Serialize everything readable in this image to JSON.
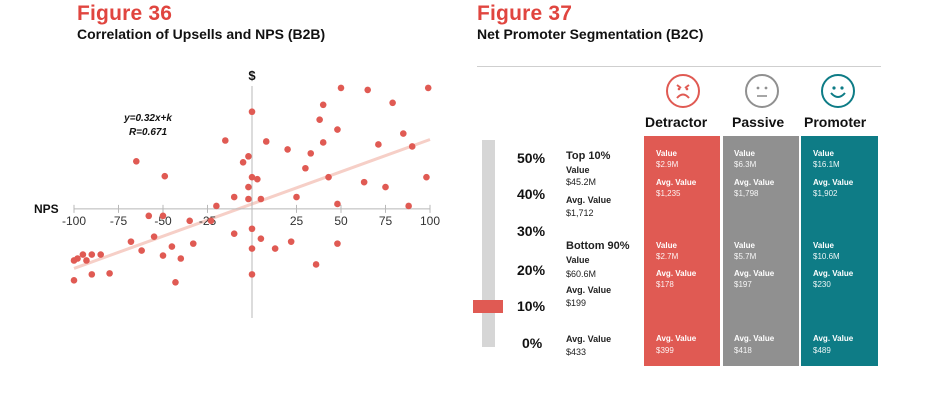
{
  "figure36": {
    "number": "Figure 36",
    "subtitle": "Correlation of Upsells and NPS (B2B)"
  },
  "figure37": {
    "number": "Figure 37",
    "subtitle": "Net Promoter Segmentation (B2C)"
  },
  "colors": {
    "accent_red": "#e0453f",
    "point_red": "#e05a53",
    "trend_line": "#f6cfc7",
    "passive_gray": "#909090",
    "promoter_teal": "#0e7c86"
  },
  "chart_data": [
    {
      "type": "scatter",
      "title": "Correlation of Upsells and NPS (B2B)",
      "xlabel": "NPS",
      "ylabel": "$",
      "xlim": [
        -100,
        100
      ],
      "xticks": [
        -100,
        -75,
        -50,
        -25,
        0,
        25,
        50,
        75,
        100
      ],
      "xtick_labels": [
        "-100",
        "-75",
        "-50",
        "-25",
        "",
        "25",
        "50",
        "75",
        "100"
      ],
      "ylim": [
        -1.1,
        1.3
      ],
      "annotations": [
        "y=0.32x+k",
        "R=0.671"
      ],
      "trendline": {
        "slope": 0.32,
        "x": [
          -100,
          100
        ],
        "y": [
          -0.6,
          0.7
        ]
      },
      "points": [
        {
          "x": 50,
          "y": 1.22
        },
        {
          "x": 65,
          "y": 1.2
        },
        {
          "x": 99,
          "y": 1.22
        },
        {
          "x": 40,
          "y": 1.05
        },
        {
          "x": 79,
          "y": 1.07
        },
        {
          "x": 38,
          "y": 0.9
        },
        {
          "x": 0,
          "y": 0.98
        },
        {
          "x": 48,
          "y": 0.8
        },
        {
          "x": 85,
          "y": 0.76
        },
        {
          "x": -15,
          "y": 0.69
        },
        {
          "x": 8,
          "y": 0.68
        },
        {
          "x": 40,
          "y": 0.67
        },
        {
          "x": 71,
          "y": 0.65
        },
        {
          "x": 20,
          "y": 0.6
        },
        {
          "x": 33,
          "y": 0.56
        },
        {
          "x": 90,
          "y": 0.63
        },
        {
          "x": -2,
          "y": 0.53
        },
        {
          "x": -65,
          "y": 0.48
        },
        {
          "x": -5,
          "y": 0.47
        },
        {
          "x": 30,
          "y": 0.41
        },
        {
          "x": -49,
          "y": 0.33
        },
        {
          "x": 0,
          "y": 0.32
        },
        {
          "x": 3,
          "y": 0.3
        },
        {
          "x": 43,
          "y": 0.32
        },
        {
          "x": 63,
          "y": 0.27
        },
        {
          "x": 98,
          "y": 0.32
        },
        {
          "x": -2,
          "y": 0.22
        },
        {
          "x": 75,
          "y": 0.22
        },
        {
          "x": -10,
          "y": 0.12
        },
        {
          "x": -2,
          "y": 0.1
        },
        {
          "x": 5,
          "y": 0.1
        },
        {
          "x": 25,
          "y": 0.12
        },
        {
          "x": -20,
          "y": 0.03
        },
        {
          "x": 48,
          "y": 0.05
        },
        {
          "x": 88,
          "y": 0.03
        },
        {
          "x": -58,
          "y": -0.07
        },
        {
          "x": -50,
          "y": -0.07
        },
        {
          "x": -35,
          "y": -0.12
        },
        {
          "x": -23,
          "y": -0.12
        },
        {
          "x": 0,
          "y": -0.2
        },
        {
          "x": -10,
          "y": -0.25
        },
        {
          "x": -55,
          "y": -0.28
        },
        {
          "x": -68,
          "y": -0.33
        },
        {
          "x": 5,
          "y": -0.3
        },
        {
          "x": 22,
          "y": -0.33
        },
        {
          "x": -45,
          "y": -0.38
        },
        {
          "x": -33,
          "y": -0.35
        },
        {
          "x": 48,
          "y": -0.35
        },
        {
          "x": 0,
          "y": -0.4
        },
        {
          "x": -62,
          "y": -0.42
        },
        {
          "x": 13,
          "y": -0.4
        },
        {
          "x": -95,
          "y": -0.46
        },
        {
          "x": -90,
          "y": -0.46
        },
        {
          "x": -85,
          "y": -0.46
        },
        {
          "x": -98,
          "y": -0.5
        },
        {
          "x": -50,
          "y": -0.47
        },
        {
          "x": -40,
          "y": -0.5
        },
        {
          "x": -100,
          "y": -0.52
        },
        {
          "x": -93,
          "y": -0.52
        },
        {
          "x": -80,
          "y": -0.65
        },
        {
          "x": 36,
          "y": -0.56
        },
        {
          "x": -90,
          "y": -0.66
        },
        {
          "x": -100,
          "y": -0.72
        },
        {
          "x": -43,
          "y": -0.74
        },
        {
          "x": 0,
          "y": -0.66
        }
      ]
    },
    {
      "type": "table",
      "title": "Net Promoter Segmentation (B2C)",
      "columns": [
        "Detractor",
        "Passive",
        "Promoter"
      ],
      "scale_labels": [
        "50%",
        "40%",
        "30%",
        "20%",
        "10%",
        "0%"
      ],
      "highlighted_scale_label": "10%",
      "rows": [
        {
          "name": "Top 10%",
          "overall": {
            "value_label": "Value",
            "value": "$45.2M",
            "avg_label": "Avg. Value",
            "avg_value": "$1,712"
          },
          "cells": [
            {
              "value_label": "Value",
              "value": "$2.9M",
              "avg_label": "Avg. Value",
              "avg_value": "$1,235"
            },
            {
              "value_label": "Value",
              "value": "$6.3M",
              "avg_label": "Avg. Value",
              "avg_value": "$1,798"
            },
            {
              "value_label": "Value",
              "value": "$16.1M",
              "avg_label": "Avg. Value",
              "avg_value": "$1,902"
            }
          ]
        },
        {
          "name": "Bottom 90%",
          "overall": {
            "value_label": "Value",
            "value": "$60.6M",
            "avg_label": "Avg. Value",
            "avg_value": "$199"
          },
          "cells": [
            {
              "value_label": "Value",
              "value": "$2.7M",
              "avg_label": "Avg. Value",
              "avg_value": "$178"
            },
            {
              "value_label": "Value",
              "value": "$5.7M",
              "avg_label": "Avg. Value",
              "avg_value": "$197"
            },
            {
              "value_label": "Value",
              "value": "$10.6M",
              "avg_label": "Avg. Value",
              "avg_value": "$230"
            }
          ]
        },
        {
          "name": "",
          "overall": {
            "avg_label": "Avg. Value",
            "avg_value": "$433"
          },
          "cells": [
            {
              "avg_label": "Avg. Value",
              "avg_value": "$399"
            },
            {
              "avg_label": "Avg. Value",
              "avg_value": "$418"
            },
            {
              "avg_label": "Avg. Value",
              "avg_value": "$489"
            }
          ]
        }
      ]
    }
  ]
}
